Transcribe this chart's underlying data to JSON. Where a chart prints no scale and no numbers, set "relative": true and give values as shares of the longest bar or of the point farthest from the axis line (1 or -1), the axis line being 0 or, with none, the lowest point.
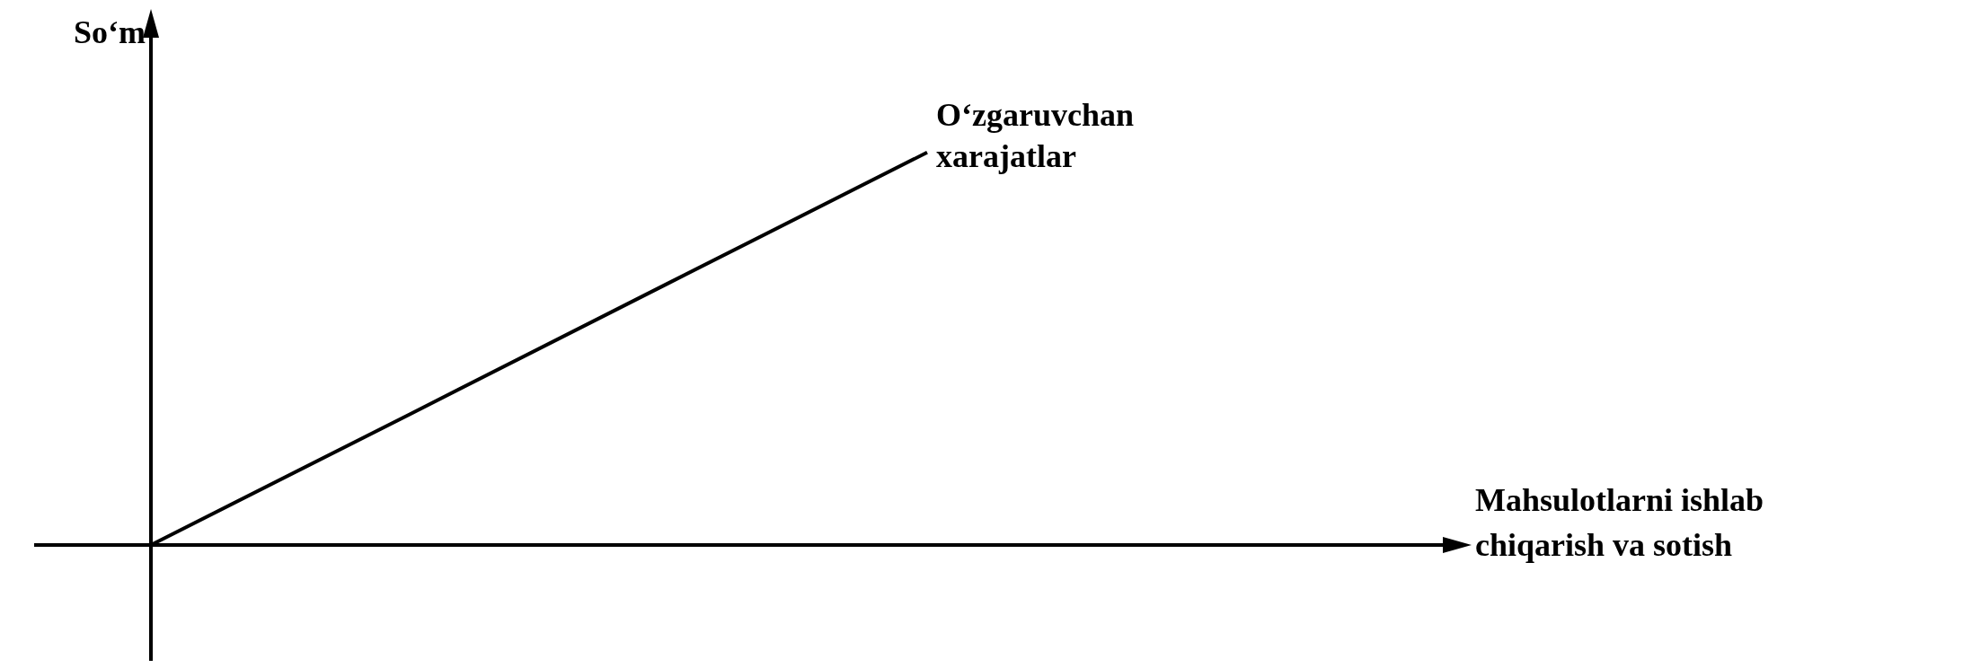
{
  "chart_data": {
    "type": "line",
    "relative": true,
    "ylabel": "So‘m",
    "xlabel": "Mahsulotlarni ishlab chiqarish va sotish",
    "categories": [
      null,
      null,
      null,
      null,
      null,
      null
    ],
    "marker": "none",
    "line_style": "solid",
    "series": [
      {
        "name": "O‘zgaruvchan xarajatlar",
        "color": "#000000",
        "values": [
          0,
          0.333,
          0.667,
          1,
          null,
          null
        ]
      }
    ]
  }
}
